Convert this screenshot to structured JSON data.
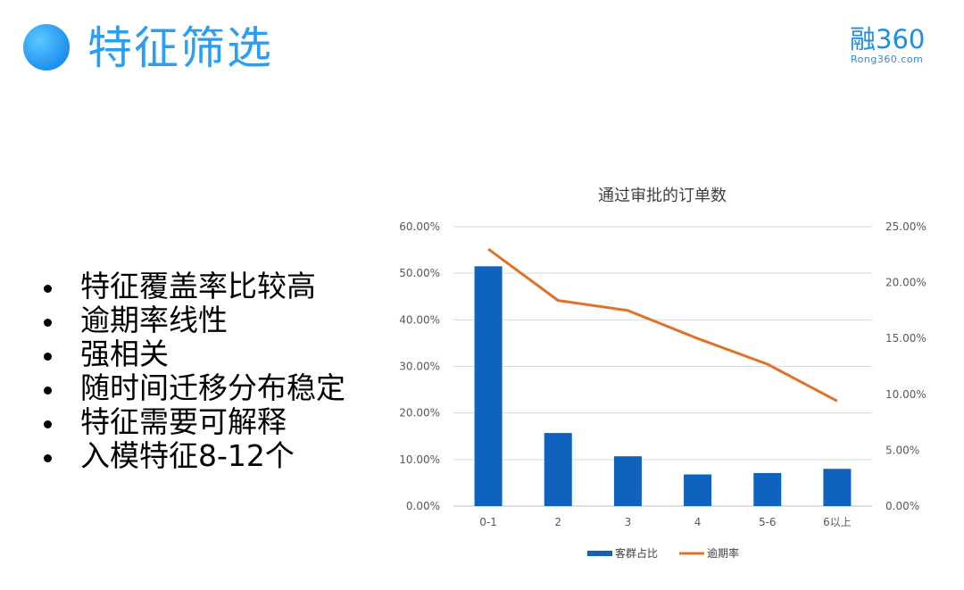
{
  "slide": {
    "title": "特征筛选",
    "logo_main": "融360",
    "logo_sub": "Rong360.com",
    "bullets": [
      "特征覆盖率比较高",
      "逾期率线性",
      "强相关",
      "随时间迁移分布稳定",
      "特征需要可解释",
      "入模特征8-12个"
    ]
  },
  "chart_data": {
    "type": "bar",
    "title": "通过审批的订单数",
    "categories": [
      "0-1",
      "2",
      "3",
      "4",
      "5-6",
      "6以上"
    ],
    "series": [
      {
        "name": "客群占比",
        "type": "bar",
        "axis": "left",
        "color": "#0f62be",
        "values": [
          51.5,
          15.7,
          10.7,
          6.8,
          7.1,
          8.0
        ]
      },
      {
        "name": "逾期率",
        "type": "line",
        "axis": "right",
        "color": "#e0712a",
        "values": [
          23.0,
          18.4,
          17.5,
          15.0,
          12.7,
          9.4
        ]
      }
    ],
    "y_left": {
      "min": 0,
      "max": 60,
      "step": 10,
      "tick_labels": [
        "0.00%",
        "10.00%",
        "20.00%",
        "30.00%",
        "40.00%",
        "50.00%",
        "60.00%"
      ]
    },
    "y_right": {
      "min": 0,
      "max": 25,
      "step": 5,
      "tick_labels": [
        "0.00%",
        "5.00%",
        "10.00%",
        "15.00%",
        "20.00%",
        "25.00%"
      ]
    },
    "grid": true,
    "legend_position": "bottom"
  }
}
